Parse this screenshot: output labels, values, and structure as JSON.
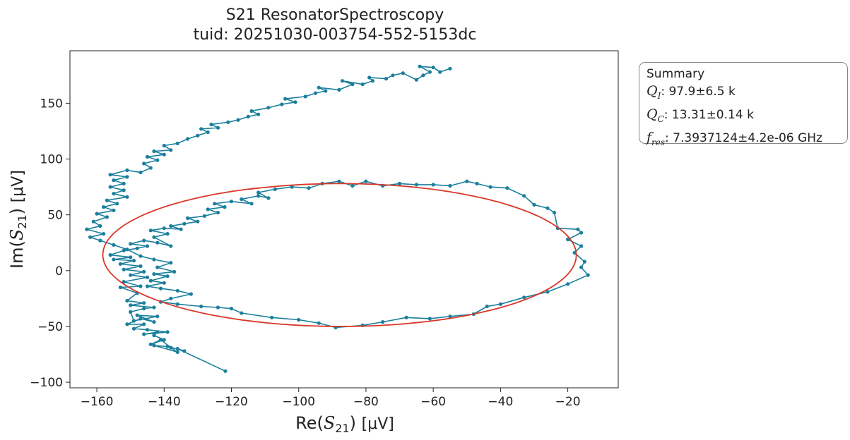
{
  "chart_data": {
    "type": "scatter",
    "title": "S21 ResonatorSpectroscopy",
    "subtitle": "tuid: 20251030-003754-552-5153dc",
    "xlabel": {
      "quantity": "Re",
      "symbol": "S",
      "subscript": "21",
      "unit": "[μV]"
    },
    "ylabel": {
      "quantity": "Im",
      "symbol": "S",
      "subscript": "21",
      "unit": "[μV]"
    },
    "xlim": [
      -168,
      -5
    ],
    "ylim": [
      -105,
      197
    ],
    "xticks": [
      -160,
      -140,
      -120,
      -100,
      -80,
      -60,
      -40,
      -20
    ],
    "yticks": [
      -100,
      -50,
      0,
      50,
      100,
      150
    ],
    "colors": {
      "data": "#1a7f9c",
      "fit": "#d9382a"
    },
    "series": [
      {
        "kind": "data",
        "points": [
          [
            -121.8,
            -90
          ],
          [
            -136,
            -70
          ],
          [
            -134,
            -72
          ],
          [
            -139,
            -68
          ],
          [
            -143,
            -67
          ],
          [
            -136,
            -73
          ],
          [
            -138,
            -69
          ],
          [
            -141,
            -62
          ],
          [
            -144,
            -66
          ],
          [
            -140,
            -62
          ],
          [
            -143,
            -58
          ],
          [
            -142,
            -55
          ],
          [
            -146,
            -57
          ],
          [
            -139,
            -55
          ],
          [
            -145,
            -53
          ],
          [
            -149,
            -52
          ],
          [
            -146,
            -48
          ],
          [
            -151,
            -48
          ],
          [
            -147,
            -43
          ],
          [
            -143,
            -46
          ],
          [
            -148,
            -40
          ],
          [
            -142,
            -41
          ],
          [
            -149,
            -45
          ],
          [
            -150,
            -37
          ],
          [
            -146,
            -34
          ],
          [
            -143,
            -33
          ],
          [
            -150,
            -31
          ],
          [
            -146,
            -29
          ],
          [
            -151,
            -27
          ],
          [
            -148,
            -20
          ],
          [
            -153,
            -15
          ],
          [
            -147,
            -14
          ],
          [
            -152,
            -10
          ],
          [
            -145,
            -6
          ],
          [
            -150,
            -4
          ],
          [
            -146,
            -1
          ],
          [
            -152,
            1
          ],
          [
            -147,
            4
          ],
          [
            -153,
            6
          ],
          [
            -149,
            9
          ],
          [
            -155,
            10
          ],
          [
            -150,
            12
          ],
          [
            -156,
            14
          ],
          [
            -152,
            18
          ],
          [
            -148,
            20
          ],
          [
            -145,
            22
          ],
          [
            -150,
            24
          ],
          [
            -146,
            27
          ],
          [
            -142,
            25
          ],
          [
            -138,
            22
          ],
          [
            -143,
            30
          ],
          [
            -139,
            33
          ],
          [
            -144,
            36
          ],
          [
            -140,
            38
          ],
          [
            -135,
            37
          ],
          [
            -138,
            40
          ],
          [
            -134,
            42
          ],
          [
            -130,
            44
          ],
          [
            -133,
            47
          ],
          [
            -128,
            49
          ],
          [
            -124,
            52
          ],
          [
            -127,
            55
          ],
          [
            -122,
            57
          ],
          [
            -125,
            60
          ],
          [
            -120,
            62
          ],
          [
            -114,
            60
          ],
          [
            -117,
            64
          ],
          [
            -112,
            67
          ],
          [
            -109,
            65
          ],
          [
            -112,
            70
          ],
          [
            -107,
            73
          ],
          [
            -102,
            75
          ],
          [
            -97,
            74
          ],
          [
            -93,
            78
          ],
          [
            -88,
            80
          ],
          [
            -84,
            76
          ],
          [
            -80,
            80
          ],
          [
            -75,
            76
          ],
          [
            -70,
            78
          ],
          [
            -65,
            77
          ],
          [
            -60,
            77
          ],
          [
            -55,
            76
          ],
          [
            -50,
            80
          ],
          [
            -47,
            78
          ],
          [
            -43,
            75
          ],
          [
            -38,
            74
          ],
          [
            -33,
            67
          ],
          [
            -30,
            59
          ],
          [
            -26,
            56
          ],
          [
            -24,
            52
          ],
          [
            -23,
            38
          ],
          [
            -17,
            37
          ],
          [
            -16,
            34
          ],
          [
            -20,
            28
          ],
          [
            -16,
            22
          ],
          [
            -18,
            16
          ],
          [
            -15,
            8
          ],
          [
            -16,
            3
          ],
          [
            -14,
            -4
          ],
          [
            -20,
            -12
          ],
          [
            -26,
            -19
          ],
          [
            -33,
            -24
          ],
          [
            -40,
            -30
          ],
          [
            -44,
            -32
          ],
          [
            -48,
            -39
          ],
          [
            -55,
            -41
          ],
          [
            -61,
            -43
          ],
          [
            -68,
            -42
          ],
          [
            -75,
            -46
          ],
          [
            -81,
            -49
          ],
          [
            -89,
            -51
          ],
          [
            -94,
            -47
          ],
          [
            -100,
            -44
          ],
          [
            -108,
            -42
          ],
          [
            -117,
            -38
          ],
          [
            -120,
            -34
          ],
          [
            -124,
            -33
          ],
          [
            -129,
            -32
          ],
          [
            -136,
            -30
          ],
          [
            -141,
            -28
          ],
          [
            -138,
            -25
          ],
          [
            -132,
            -21
          ],
          [
            -136,
            -18
          ],
          [
            -141,
            -16
          ],
          [
            -145,
            -14
          ],
          [
            -140,
            -11
          ],
          [
            -144,
            -9
          ],
          [
            -139,
            -5
          ],
          [
            -143,
            -3
          ],
          [
            -137,
            -1
          ],
          [
            -142,
            3
          ],
          [
            -138,
            7
          ],
          [
            -143,
            10
          ],
          [
            -147,
            13
          ],
          [
            -151,
            19
          ],
          [
            -155,
            23
          ],
          [
            -159,
            27
          ],
          [
            -162,
            30
          ],
          [
            -158,
            33
          ],
          [
            -163,
            37
          ],
          [
            -159,
            40
          ],
          [
            -161,
            44
          ],
          [
            -157,
            48
          ],
          [
            -160,
            51
          ],
          [
            -155,
            54
          ],
          [
            -158,
            57
          ],
          [
            -154,
            60
          ],
          [
            -157,
            63
          ],
          [
            -151,
            66
          ],
          [
            -155,
            69
          ],
          [
            -152,
            72
          ],
          [
            -156,
            75
          ],
          [
            -152,
            78
          ],
          [
            -155,
            81
          ],
          [
            -151,
            84
          ],
          [
            -156,
            86
          ],
          [
            -151,
            90
          ],
          [
            -147,
            88
          ],
          [
            -144,
            92
          ],
          [
            -146,
            96
          ],
          [
            -142,
            99
          ],
          [
            -145,
            102
          ],
          [
            -140,
            104
          ],
          [
            -143,
            107
          ],
          [
            -138,
            108
          ],
          [
            -140,
            112
          ],
          [
            -136,
            114
          ],
          [
            -133,
            118
          ],
          [
            -130,
            121
          ],
          [
            -127,
            124
          ],
          [
            -129,
            127
          ],
          [
            -124,
            128
          ],
          [
            -126,
            131
          ],
          [
            -121,
            133
          ],
          [
            -118,
            135
          ],
          [
            -115,
            138
          ],
          [
            -112,
            140
          ],
          [
            -114,
            143
          ],
          [
            -109,
            146
          ],
          [
            -105,
            149
          ],
          [
            -101,
            151
          ],
          [
            -104,
            154
          ],
          [
            -98,
            156
          ],
          [
            -95,
            159
          ],
          [
            -92,
            161
          ],
          [
            -94,
            164
          ],
          [
            -88,
            162
          ],
          [
            -84,
            167
          ],
          [
            -87,
            170
          ],
          [
            -81,
            167
          ],
          [
            -78,
            170
          ],
          [
            -79,
            173
          ],
          [
            -74,
            172
          ],
          [
            -72,
            175
          ],
          [
            -69,
            177
          ],
          [
            -65,
            171
          ],
          [
            -63,
            175
          ],
          [
            -61,
            178
          ],
          [
            -64,
            183
          ],
          [
            -60,
            182
          ],
          [
            -58,
            178
          ],
          [
            -55,
            181
          ]
        ]
      },
      {
        "kind": "fit",
        "ellipse": {
          "cx": -87.5,
          "cy": 14,
          "rx": 71,
          "ry": 64,
          "t_start_deg": 110,
          "t_end_deg": 473
        }
      }
    ]
  },
  "summary": {
    "title": "Summary",
    "items": [
      {
        "symbol": "Q",
        "subscript": "I",
        "value": ": 97.9±6.5 k"
      },
      {
        "symbol": "Q",
        "subscript": "C",
        "value": ": 13.31±0.14 k"
      },
      {
        "symbol": "f",
        "subscript": "res",
        "value": ": 7.3937124±4.2e-06 GHz"
      }
    ]
  }
}
